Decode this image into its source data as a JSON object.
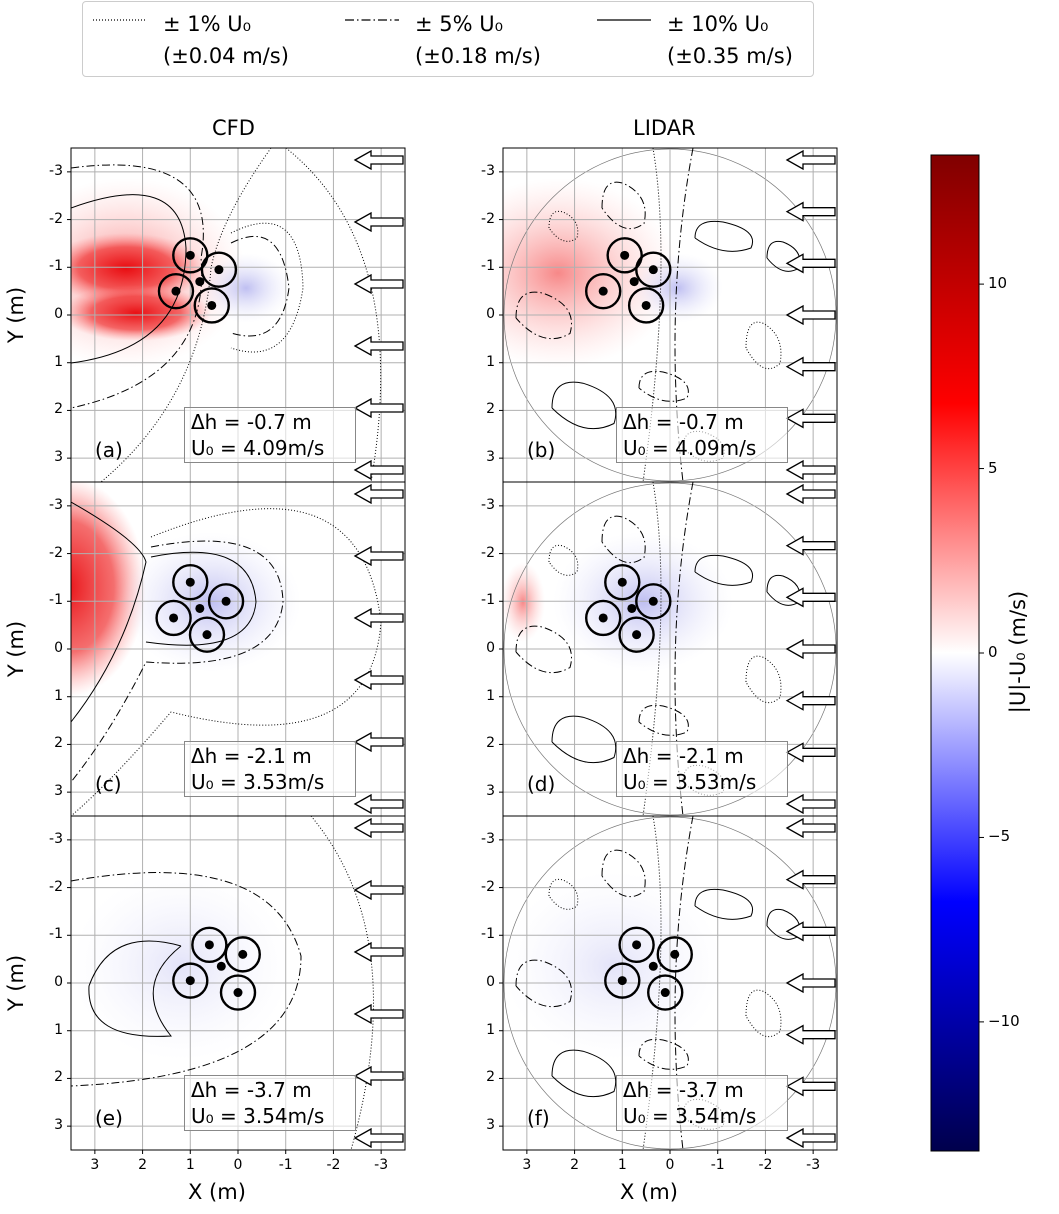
{
  "legend": [
    {
      "style": "dotted",
      "label": "± 1% U₀",
      "value": "(±0.04 m/s)"
    },
    {
      "style": "dashdot",
      "label": "± 5% U₀",
      "value": "(±0.18 m/s)"
    },
    {
      "style": "solid",
      "label": "± 10% U₀",
      "value": "(±0.35 m/s)"
    }
  ],
  "columns": {
    "left": "CFD",
    "right": "LIDAR"
  },
  "axes": {
    "xlabel": "X (m)",
    "ylabel": "Y (m)",
    "xticks": [
      "3",
      "2",
      "1",
      "0",
      "-1",
      "-2",
      "-3"
    ],
    "yticks": [
      "-3",
      "-2",
      "-1",
      "0",
      "1",
      "2",
      "3"
    ]
  },
  "colorbar": {
    "label": "|U|-U₀ (m/s)",
    "ticks": [
      "10",
      "5",
      "0",
      "−5",
      "−10"
    ],
    "range": [
      -13.5,
      13.5
    ],
    "colormap": "seismic"
  },
  "panels": [
    {
      "id": "(a)",
      "dh": "Δh = -0.7 m",
      "u0": "U₀ = 4.09m/s"
    },
    {
      "id": "(b)",
      "dh": "Δh = -0.7 m",
      "u0": "U₀ = 4.09m/s"
    },
    {
      "id": "(c)",
      "dh": "Δh = -2.1 m",
      "u0": "U₀ = 3.53m/s"
    },
    {
      "id": "(d)",
      "dh": "Δh = -2.1 m",
      "u0": "U₀ = 3.53m/s"
    },
    {
      "id": "(e)",
      "dh": "Δh = -3.7 m",
      "u0": "U₀ = 3.54m/s"
    },
    {
      "id": "(f)",
      "dh": "Δh = -3.7 m",
      "u0": "U₀ = 3.54m/s"
    }
  ],
  "chart_data": {
    "type": "heatmap",
    "xlim": [
      3.5,
      -3.5
    ],
    "ylim": [
      3.5,
      -3.5
    ],
    "grid": true,
    "contour_levels": [
      "±1% U₀",
      "±5% U₀",
      "±10% U₀"
    ],
    "markers": [
      {
        "panel": "(a)",
        "rotors": [
          [
            1.0,
            -1.25
          ],
          [
            0.4,
            -0.95
          ],
          [
            1.3,
            -0.5
          ],
          [
            0.55,
            -0.2
          ]
        ],
        "hub": [
          0.8,
          -0.7
        ]
      },
      {
        "panel": "(b)",
        "rotors": [
          [
            0.95,
            -1.25
          ],
          [
            0.35,
            -0.95
          ],
          [
            1.4,
            -0.5
          ],
          [
            0.5,
            -0.2
          ]
        ],
        "hub": [
          0.75,
          -0.7
        ]
      },
      {
        "panel": "(c)",
        "rotors": [
          [
            1.0,
            -1.4
          ],
          [
            0.25,
            -1.0
          ],
          [
            1.35,
            -0.65
          ],
          [
            0.65,
            -0.3
          ]
        ],
        "hub": [
          0.8,
          -0.85
        ]
      },
      {
        "panel": "(d)",
        "rotors": [
          [
            1.0,
            -1.4
          ],
          [
            0.35,
            -1.0
          ],
          [
            1.4,
            -0.65
          ],
          [
            0.7,
            -0.3
          ]
        ],
        "hub": [
          0.8,
          -0.85
        ]
      },
      {
        "panel": "(e)",
        "rotors": [
          [
            0.6,
            -0.8
          ],
          [
            -0.1,
            -0.6
          ],
          [
            1.0,
            -0.05
          ],
          [
            0.0,
            0.2
          ]
        ],
        "hub": [
          0.35,
          -0.35
        ]
      },
      {
        "panel": "(f)",
        "rotors": [
          [
            0.7,
            -0.8
          ],
          [
            -0.1,
            -0.6
          ],
          [
            1.0,
            -0.05
          ],
          [
            0.1,
            0.2
          ]
        ],
        "hub": [
          0.35,
          -0.35
        ]
      }
    ]
  }
}
